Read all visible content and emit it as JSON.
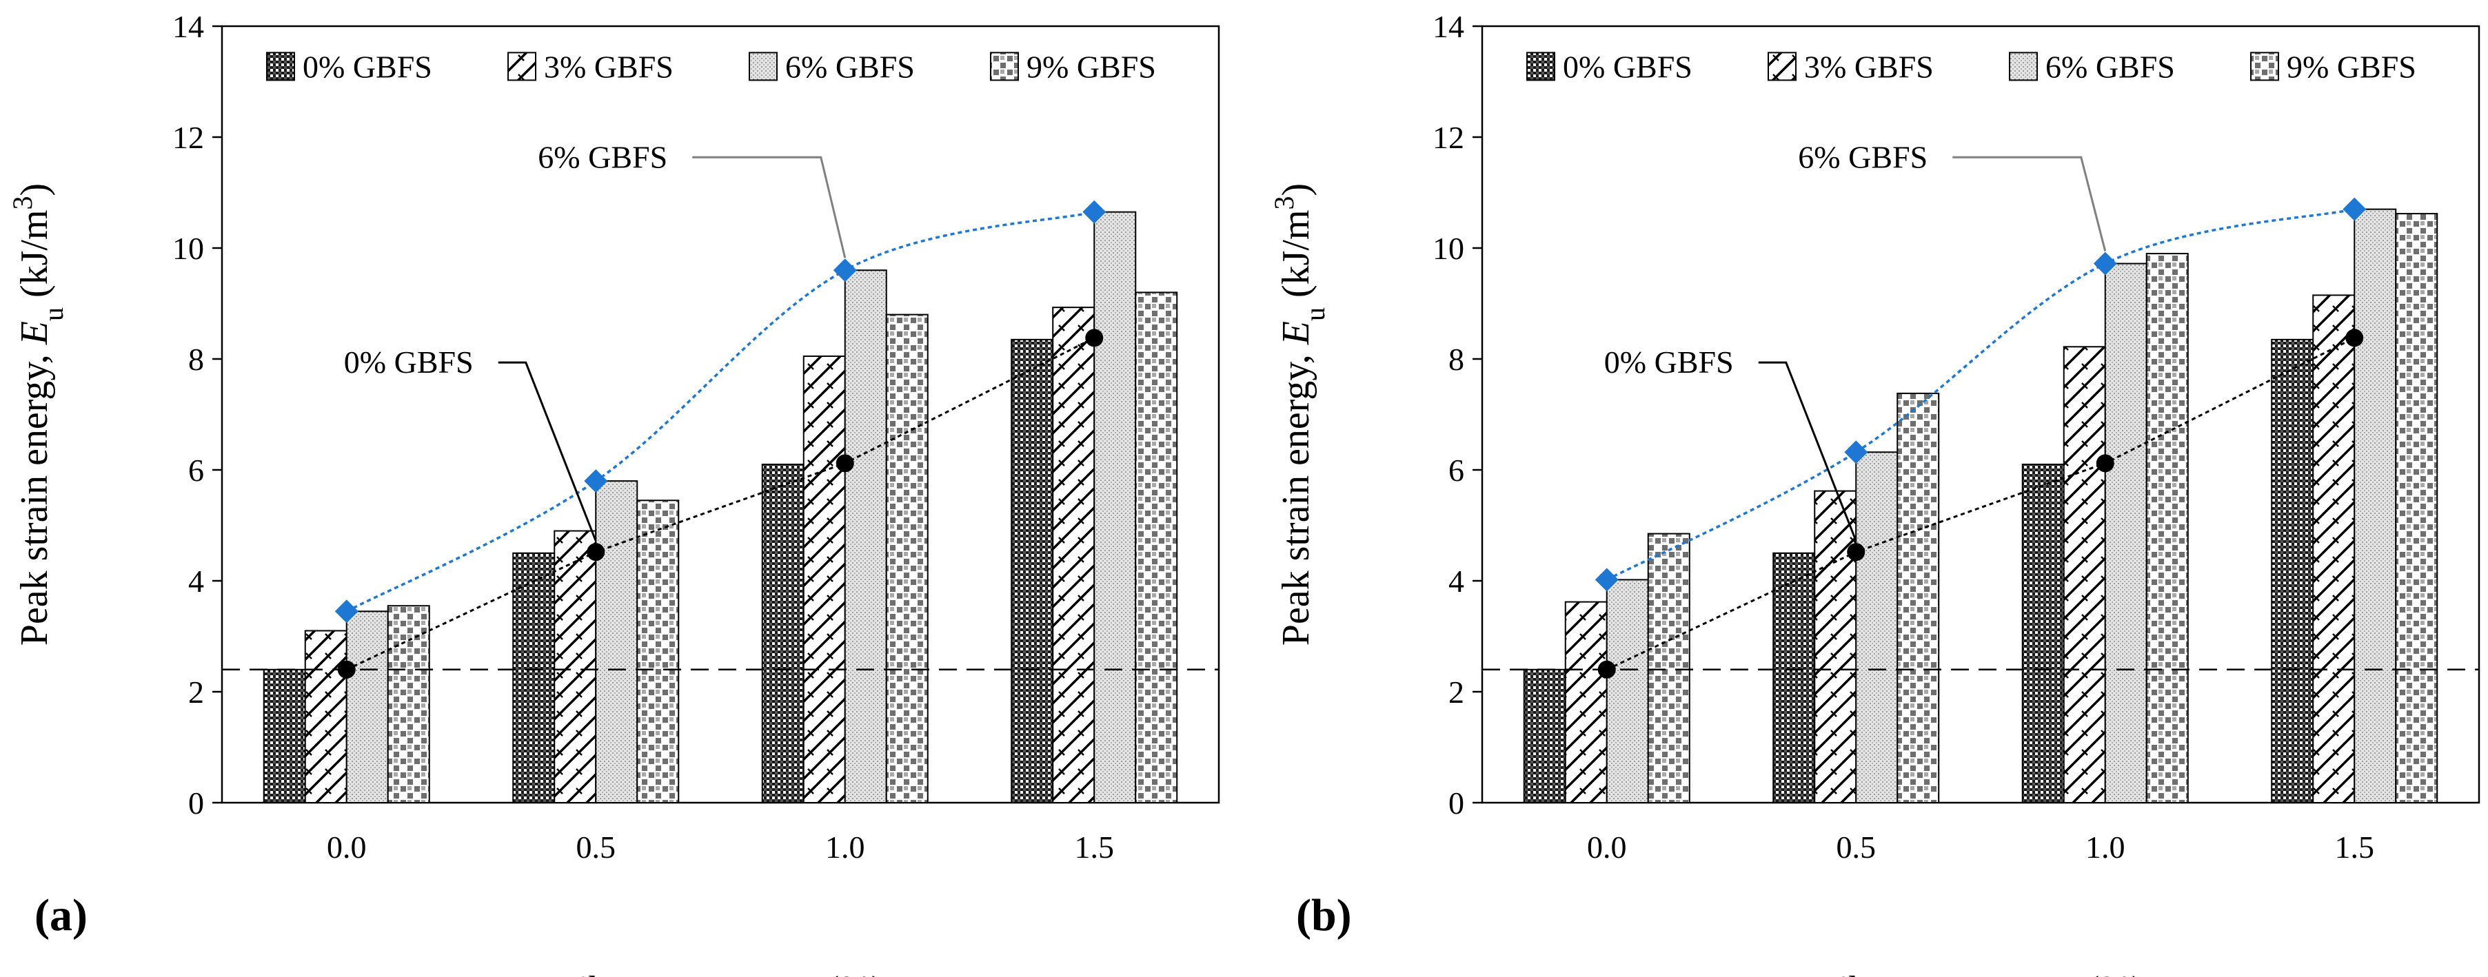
{
  "chart_data": [
    {
      "type": "bar",
      "panel_label": "(a)",
      "categories": [
        "0.0",
        "0.5",
        "1.0",
        "1.5"
      ],
      "series": [
        {
          "name": "0% GBFS",
          "values": [
            2.4,
            4.5,
            6.1,
            8.35
          ]
        },
        {
          "name": "3% GBFS",
          "values": [
            3.1,
            4.9,
            8.05,
            8.93
          ]
        },
        {
          "name": "6% GBFS",
          "values": [
            3.45,
            5.8,
            9.6,
            10.65
          ]
        },
        {
          "name": "9% GBFS",
          "values": [
            3.55,
            5.45,
            8.8,
            9.2
          ]
        }
      ],
      "line_0_gbfs": {
        "x": [
          0.0,
          0.5,
          1.0,
          1.5
        ],
        "y": [
          2.4,
          4.52,
          6.12,
          8.38
        ]
      },
      "line_6_gbfs": {
        "x": [
          0.0,
          0.5,
          1.0,
          1.5
        ],
        "y": [
          3.45,
          5.8,
          9.6,
          10.65
        ]
      },
      "reference_line_y": 2.4,
      "annotations": [
        "6% GBFS",
        "0% GBFS"
      ],
      "xlabel": "Fiber content, ",
      "xlabel_var": "F",
      "xlabel_sub": "c",
      "xlabel_unit": " (%)",
      "ylabel": "Peak strain energy, ",
      "ylabel_var": "E",
      "ylabel_sub": "u",
      "ylabel_unit": " (kJ/m",
      "ylabel_sup": "3",
      "ylabel_close": ")",
      "ylim": [
        0,
        14
      ],
      "yticks": [
        "0",
        "2",
        "4",
        "6",
        "8",
        "10",
        "12",
        "14"
      ]
    },
    {
      "type": "bar",
      "panel_label": "(b)",
      "categories": [
        "0.0",
        "0.5",
        "1.0",
        "1.5"
      ],
      "series": [
        {
          "name": "0% GBFS",
          "values": [
            2.4,
            4.5,
            6.1,
            8.35
          ]
        },
        {
          "name": "3% GBFS",
          "values": [
            3.62,
            5.62,
            8.22,
            9.15
          ]
        },
        {
          "name": "6% GBFS",
          "values": [
            4.02,
            6.32,
            9.72,
            10.7
          ]
        },
        {
          "name": "9% GBFS",
          "values": [
            4.85,
            7.38,
            9.9,
            10.62
          ]
        }
      ],
      "line_0_gbfs": {
        "x": [
          0.0,
          0.5,
          1.0,
          1.5
        ],
        "y": [
          2.4,
          4.52,
          6.12,
          8.38
        ]
      },
      "line_6_gbfs": {
        "x": [
          0.0,
          0.5,
          1.0,
          1.5
        ],
        "y": [
          4.02,
          6.32,
          9.72,
          10.7
        ]
      },
      "reference_line_y": 2.4,
      "annotations": [
        "6% GBFS",
        "0% GBFS"
      ],
      "xlabel": "Fiber content, ",
      "xlabel_var": "F",
      "xlabel_sub": "c",
      "xlabel_unit": " (%)",
      "ylabel": "Peak strain energy, ",
      "ylabel_var": "E",
      "ylabel_sub": "u",
      "ylabel_unit": " (kJ/m",
      "ylabel_sup": "3",
      "ylabel_close": ")",
      "ylim": [
        0,
        14
      ],
      "yticks": [
        "0",
        "2",
        "4",
        "6",
        "8",
        "10",
        "12",
        "14"
      ]
    }
  ],
  "colors": {
    "line_6_gbfs": "#1f77d4",
    "line_0_gbfs": "#000000",
    "annotation_6_leader": "#808080"
  }
}
